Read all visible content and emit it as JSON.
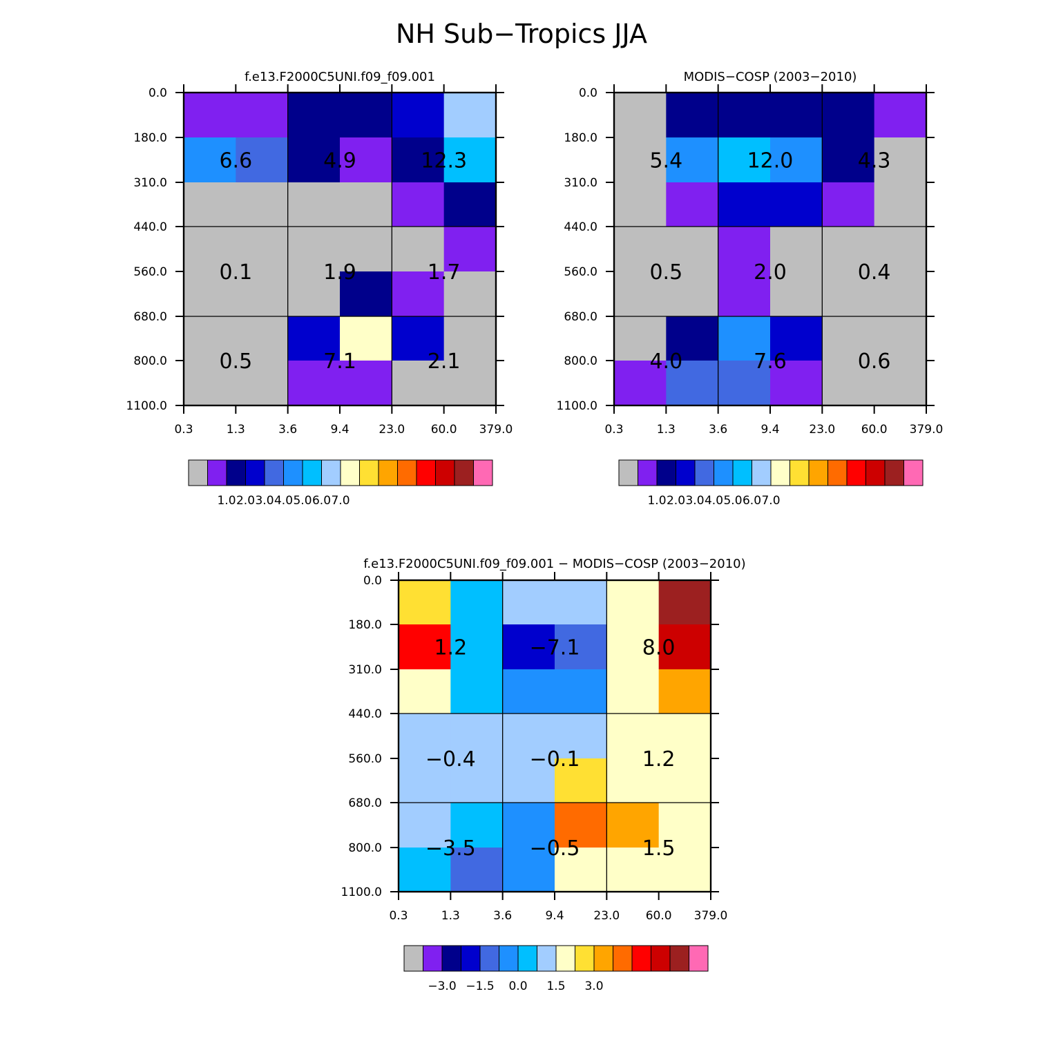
{
  "title": "NH Sub−Tropics JJA",
  "chart_data": [
    {
      "type": "heatmap",
      "title": "f.e13.F2000C5UNI.f09_f09.001",
      "x_ticks": [
        "0.3",
        "1.3",
        "3.6",
        "9.4",
        "23.0",
        "60.0",
        "379.0"
      ],
      "y_ticks": [
        "0.0",
        "180.0",
        "310.0",
        "440.0",
        "560.0",
        "680.0",
        "800.0",
        "1100.0"
      ],
      "cell_colors": [
        [
          1,
          1,
          2,
          2,
          3,
          7
        ],
        [
          5,
          4,
          2,
          1,
          2,
          6
        ],
        [
          0,
          0,
          0,
          0,
          1,
          2
        ],
        [
          0,
          0,
          0,
          0,
          0,
          1
        ],
        [
          0,
          0,
          0,
          2,
          1,
          0
        ],
        [
          0,
          0,
          3,
          8,
          3,
          0
        ],
        [
          0,
          0,
          1,
          1,
          0,
          0
        ]
      ],
      "box_values": [
        [
          "6.6",
          "4.9",
          "12.3"
        ],
        [
          "0.1",
          "1.9",
          "1.7"
        ],
        [
          "0.5",
          "7.1",
          "2.1"
        ]
      ],
      "colorbar": {
        "colors": [
          "#bebebe",
          "#8020f0",
          "#00008b",
          "#0000cd",
          "#4169e1",
          "#1e90ff",
          "#00bfff",
          "#a2cdff",
          "#ffffc8",
          "#ffe033",
          "#ffa500",
          "#ff6b00",
          "#ff0000",
          "#cd0000",
          "#9c2020",
          "#ff69b4"
        ],
        "labels": [
          "1.0",
          "2.0",
          "3.0",
          "4.0",
          "5.0",
          "6.0",
          "7.0"
        ]
      }
    },
    {
      "type": "heatmap",
      "title": "MODIS−COSP (2003−2010)",
      "x_ticks": [
        "0.3",
        "1.3",
        "3.6",
        "9.4",
        "23.0",
        "60.0",
        "379.0"
      ],
      "y_ticks": [
        "0.0",
        "180.0",
        "310.0",
        "440.0",
        "560.0",
        "680.0",
        "800.0",
        "1100.0"
      ],
      "cell_colors": [
        [
          0,
          2,
          2,
          2,
          2,
          1
        ],
        [
          0,
          5,
          6,
          5,
          2,
          0
        ],
        [
          0,
          1,
          3,
          3,
          1,
          0
        ],
        [
          0,
          0,
          1,
          0,
          0,
          0
        ],
        [
          0,
          0,
          1,
          0,
          0,
          0
        ],
        [
          0,
          2,
          5,
          3,
          0,
          0
        ],
        [
          1,
          4,
          4,
          1,
          0,
          0
        ]
      ],
      "box_values": [
        [
          "5.4",
          "12.0",
          "4.3"
        ],
        [
          "0.5",
          "2.0",
          "0.4"
        ],
        [
          "4.0",
          "7.6",
          "0.6"
        ]
      ],
      "colorbar": {
        "colors": [
          "#bebebe",
          "#8020f0",
          "#00008b",
          "#0000cd",
          "#4169e1",
          "#1e90ff",
          "#00bfff",
          "#a2cdff",
          "#ffffc8",
          "#ffe033",
          "#ffa500",
          "#ff6b00",
          "#ff0000",
          "#cd0000",
          "#9c2020",
          "#ff69b4"
        ],
        "labels": [
          "1.0",
          "2.0",
          "3.0",
          "4.0",
          "5.0",
          "6.0",
          "7.0"
        ]
      }
    },
    {
      "type": "heatmap",
      "title": "f.e13.F2000C5UNI.f09_f09.001 − MODIS−COSP (2003−2010)",
      "x_ticks": [
        "0.3",
        "1.3",
        "3.6",
        "9.4",
        "23.0",
        "60.0",
        "379.0"
      ],
      "y_ticks": [
        "0.0",
        "180.0",
        "310.0",
        "440.0",
        "560.0",
        "680.0",
        "800.0",
        "1100.0"
      ],
      "cell_colors": [
        [
          9,
          6,
          7,
          7,
          8,
          14
        ],
        [
          12,
          6,
          3,
          4,
          8,
          13
        ],
        [
          8,
          6,
          5,
          5,
          8,
          10
        ],
        [
          7,
          7,
          7,
          7,
          8,
          8
        ],
        [
          7,
          7,
          7,
          9,
          8,
          8
        ],
        [
          7,
          6,
          5,
          11,
          10,
          8
        ],
        [
          6,
          4,
          5,
          8,
          8,
          8
        ]
      ],
      "box_values": [
        [
          "1.2",
          "−7.1",
          "8.0"
        ],
        [
          "−0.4",
          "−0.1",
          "1.2"
        ],
        [
          "−3.5",
          "−0.5",
          "1.5"
        ]
      ],
      "colorbar": {
        "colors": [
          "#bebebe",
          "#8020f0",
          "#00008b",
          "#0000cd",
          "#4169e1",
          "#1e90ff",
          "#00bfff",
          "#a2cdff",
          "#ffffc8",
          "#ffe033",
          "#ffa500",
          "#ff6b00",
          "#ff0000",
          "#cd0000",
          "#9c2020",
          "#ff69b4"
        ],
        "labels": [
          "−3.0",
          "−1.5",
          "0.0",
          "1.5",
          "3.0"
        ]
      }
    }
  ]
}
